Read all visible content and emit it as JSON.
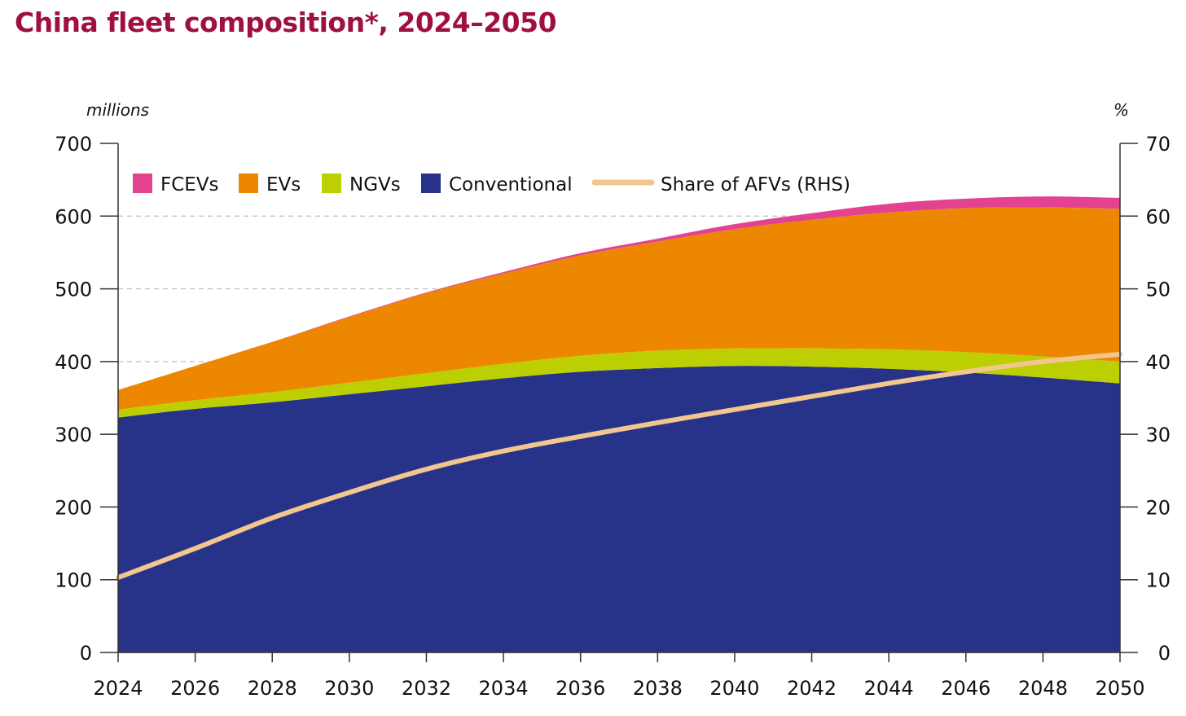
{
  "title": "China fleet composition*, 2024–2050",
  "chart_data": {
    "type": "area",
    "title": "China fleet composition*, 2024–2050",
    "left_unit": "millions",
    "right_unit": "%",
    "x": [
      2024,
      2026,
      2028,
      2030,
      2032,
      2034,
      2036,
      2038,
      2040,
      2042,
      2044,
      2046,
      2048,
      2050
    ],
    "x_ticks": [
      "2024",
      "2026",
      "2028",
      "2030",
      "2032",
      "2034",
      "2036",
      "2038",
      "2040",
      "2042",
      "2044",
      "2046",
      "2048",
      "2050"
    ],
    "ylim": [
      0,
      700
    ],
    "y_ticks": [
      "0",
      "100",
      "200",
      "300",
      "400",
      "500",
      "600",
      "700"
    ],
    "y2lim": [
      0,
      70
    ],
    "y2_ticks": [
      "0",
      "10",
      "20",
      "30",
      "40",
      "50",
      "60",
      "70"
    ],
    "series": [
      {
        "name": "Conventional",
        "color": "#263388",
        "values": [
          323,
          335,
          344,
          355,
          366,
          377,
          386,
          391,
          394,
          393,
          390,
          385,
          378,
          370
        ]
      },
      {
        "name": "NGVs",
        "color": "#bccf02",
        "values": [
          11,
          12,
          14,
          16,
          18,
          20,
          22,
          24,
          24,
          25,
          27,
          28,
          29,
          30
        ]
      },
      {
        "name": "EVs",
        "color": "#ee8700",
        "values": [
          27,
          47,
          69,
          90,
          110,
          124,
          138,
          150,
          164,
          177,
          188,
          198,
          205,
          210
        ]
      },
      {
        "name": "FCEVs",
        "color": "#e2428f",
        "values": [
          0,
          0,
          0,
          1,
          1,
          2,
          3,
          4,
          7,
          9,
          12,
          13,
          15,
          15
        ]
      }
    ],
    "line_series": {
      "name": "Share of AFVs (RHS)",
      "color": "#f2c68f",
      "axis": "right",
      "values": [
        10.3,
        14.3,
        18.5,
        22.0,
        25.2,
        27.7,
        29.7,
        31.6,
        33.4,
        35.2,
        37.0,
        38.6,
        40.0,
        41.0
      ]
    },
    "legend": [
      "FCEVs",
      "EVs",
      "NGVs",
      "Conventional",
      "Share of AFVs (RHS)"
    ],
    "legend_position": "top-left",
    "grid": "horizontal dashed"
  }
}
